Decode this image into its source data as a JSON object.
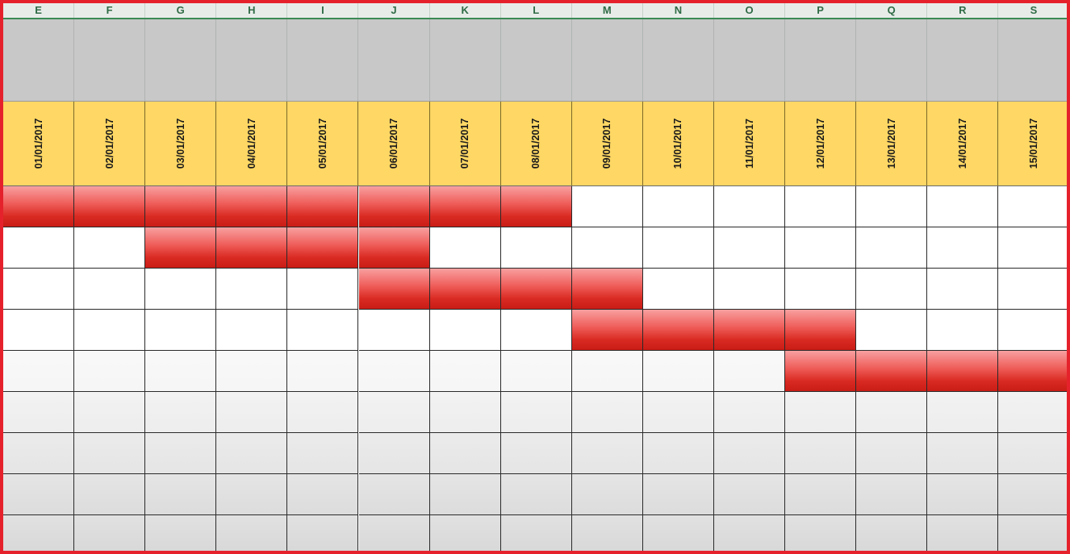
{
  "columns": [
    "E",
    "F",
    "G",
    "H",
    "I",
    "J",
    "K",
    "L",
    "M",
    "N",
    "O",
    "P",
    "Q",
    "R",
    "S"
  ],
  "dates": [
    "01/01/2017",
    "02/01/2017",
    "03/01/2017",
    "04/01/2017",
    "05/01/2017",
    "06/01/2017",
    "07/01/2017",
    "08/01/2017",
    "09/01/2017",
    "10/01/2017",
    "11/01/2017",
    "12/01/2017",
    "13/01/2017",
    "14/01/2017",
    "15/01/2017"
  ],
  "tasks": [
    {
      "start_col": 0,
      "end_col": 7
    },
    {
      "start_col": 2,
      "end_col": 5
    },
    {
      "start_col": 5,
      "end_col": 8
    },
    {
      "start_col": 8,
      "end_col": 11
    },
    {
      "start_col": 11,
      "end_col": 14
    },
    {
      "start_col": null,
      "end_col": null
    },
    {
      "start_col": null,
      "end_col": null
    },
    {
      "start_col": null,
      "end_col": null
    },
    {
      "start_col": null,
      "end_col": null
    }
  ],
  "colors": {
    "frame_border": "#e5222c",
    "header_band": "#fed764",
    "gray_band": "#c8c8c8",
    "bar_fill": "#d92a22",
    "column_letter": "#2f6b45"
  }
}
